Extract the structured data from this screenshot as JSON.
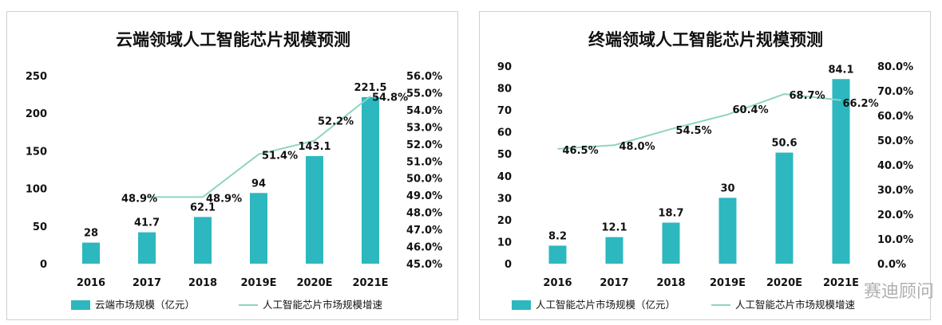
{
  "colors": {
    "bar": "#2db7bf",
    "line": "#8ed4c3",
    "text": "#111111"
  },
  "watermark": "赛迪顾问",
  "chart_data": [
    {
      "type": "bar",
      "title": "云端领域人工智能芯片规模预测",
      "categories": [
        "2016",
        "2017",
        "2018",
        "2019E",
        "2020E",
        "2021E"
      ],
      "series": [
        {
          "name": "云端市场规模（亿元）",
          "type": "bar",
          "axis": "left",
          "values": [
            28,
            41.7,
            62.1,
            94,
            143.1,
            221.5
          ],
          "labels": [
            "28",
            "41.7",
            "62.1",
            "94",
            "143.1",
            "221.5"
          ]
        },
        {
          "name": "人工智能芯片市场规模增速",
          "type": "line",
          "axis": "right",
          "values": [
            null,
            48.9,
            48.9,
            51.4,
            52.2,
            54.8
          ],
          "labels": [
            "",
            "48.9%",
            "48.9%",
            "51.4%",
            "52.2%",
            "54.8%"
          ]
        }
      ],
      "y_left": {
        "min": 0,
        "max": 250,
        "step": 50,
        "ticks": [
          "0",
          "50",
          "100",
          "150",
          "200",
          "250"
        ]
      },
      "y_right": {
        "min": 45,
        "max": 56,
        "step": 1,
        "ticks": [
          "45.0%",
          "46.0%",
          "47.0%",
          "48.0%",
          "49.0%",
          "50.0%",
          "51.0%",
          "52.0%",
          "53.0%",
          "54.0%",
          "55.0%",
          "56.0%"
        ]
      },
      "legend_position": "bottom",
      "grid": false
    },
    {
      "type": "bar",
      "title": "终端领域人工智能芯片规模预测",
      "categories": [
        "2016",
        "2017",
        "2018",
        "2019E",
        "2020E",
        "2021E"
      ],
      "series": [
        {
          "name": "人工智能芯片市场规模（亿元）",
          "type": "bar",
          "axis": "left",
          "values": [
            8.2,
            12.1,
            18.7,
            30,
            50.6,
            84.1
          ],
          "labels": [
            "8.2",
            "12.1",
            "18.7",
            "30",
            "50.6",
            "84.1"
          ]
        },
        {
          "name": "人工智能芯片市场规模增速",
          "type": "line",
          "axis": "right",
          "values": [
            46.5,
            48.0,
            54.5,
            60.4,
            68.7,
            66.2
          ],
          "labels": [
            "46.5%",
            "48.0%",
            "54.5%",
            "60.4%",
            "68.7%",
            "66.2%"
          ]
        }
      ],
      "y_left": {
        "min": 0,
        "max": 90,
        "step": 10,
        "ticks": [
          "0",
          "10",
          "20",
          "30",
          "40",
          "50",
          "60",
          "70",
          "80",
          "90"
        ]
      },
      "y_right": {
        "min": 0,
        "max": 80,
        "step": 10,
        "ticks": [
          "0.0%",
          "10.0%",
          "20.0%",
          "30.0%",
          "40.0%",
          "50.0%",
          "60.0%",
          "70.0%",
          "80.0%"
        ]
      },
      "legend_position": "bottom",
      "grid": false
    }
  ]
}
